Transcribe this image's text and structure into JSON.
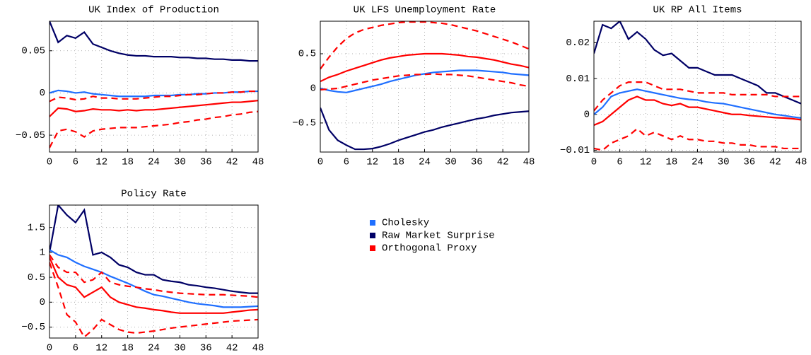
{
  "chart_data": [
    {
      "type": "line",
      "title": "UK Index of Production",
      "x": [
        0,
        2,
        4,
        6,
        8,
        10,
        12,
        14,
        16,
        18,
        20,
        22,
        24,
        26,
        28,
        30,
        32,
        34,
        36,
        38,
        40,
        42,
        44,
        46,
        48
      ],
      "xlim": [
        0,
        48
      ],
      "xticks": [
        0,
        6,
        12,
        18,
        24,
        30,
        36,
        42,
        48
      ],
      "ylim": [
        -0.07,
        0.085
      ],
      "yticks": [
        {
          "value": -0.05,
          "label": "−0.05"
        },
        0,
        0.05
      ],
      "grid": true,
      "series": [
        {
          "color": "#000066",
          "style": "solid",
          "values": [
            0.085,
            0.06,
            0.068,
            0.065,
            0.072,
            0.058,
            0.054,
            0.05,
            0.047,
            0.045,
            0.044,
            0.044,
            0.043,
            0.043,
            0.043,
            0.042,
            0.042,
            0.041,
            0.041,
            0.04,
            0.04,
            0.039,
            0.039,
            0.038,
            0.038
          ]
        },
        {
          "color": "#1f6fff",
          "style": "solid",
          "values": [
            0.0,
            0.003,
            0.002,
            0.0,
            0.001,
            -0.001,
            -0.002,
            -0.003,
            -0.004,
            -0.004,
            -0.004,
            -0.004,
            -0.003,
            -0.003,
            -0.003,
            -0.002,
            -0.002,
            -0.001,
            -0.001,
            0.0,
            0.0,
            0.001,
            0.001,
            0.002,
            0.002
          ]
        },
        {
          "color": "#ff0000",
          "style": "solid",
          "values": [
            -0.028,
            -0.018,
            -0.019,
            -0.022,
            -0.021,
            -0.019,
            -0.02,
            -0.02,
            -0.021,
            -0.02,
            -0.021,
            -0.02,
            -0.02,
            -0.019,
            -0.018,
            -0.017,
            -0.016,
            -0.015,
            -0.014,
            -0.013,
            -0.012,
            -0.011,
            -0.011,
            -0.01,
            -0.009
          ]
        },
        {
          "color": "#ff0000",
          "style": "dashed",
          "values": [
            -0.01,
            -0.005,
            -0.006,
            -0.008,
            -0.007,
            -0.004,
            -0.006,
            -0.006,
            -0.007,
            -0.007,
            -0.007,
            -0.006,
            -0.005,
            -0.004,
            -0.004,
            -0.003,
            -0.002,
            -0.002,
            -0.001,
            0.0,
            0.0,
            0.001,
            0.001,
            0.002,
            0.002
          ]
        },
        {
          "color": "#ff0000",
          "style": "dashed",
          "values": [
            -0.065,
            -0.045,
            -0.043,
            -0.046,
            -0.052,
            -0.045,
            -0.043,
            -0.042,
            -0.041,
            -0.041,
            -0.041,
            -0.04,
            -0.039,
            -0.038,
            -0.037,
            -0.035,
            -0.034,
            -0.032,
            -0.031,
            -0.029,
            -0.028,
            -0.026,
            -0.025,
            -0.023,
            -0.022
          ]
        }
      ]
    },
    {
      "type": "line",
      "title": "UK LFS Unemployment Rate",
      "x": [
        0,
        2,
        4,
        6,
        8,
        10,
        12,
        14,
        16,
        18,
        20,
        22,
        24,
        26,
        28,
        30,
        32,
        34,
        36,
        38,
        40,
        42,
        44,
        46,
        48
      ],
      "xlim": [
        0,
        48
      ],
      "xticks": [
        0,
        6,
        12,
        18,
        24,
        30,
        36,
        42,
        48
      ],
      "ylim": [
        -0.92,
        0.97
      ],
      "yticks": [
        {
          "value": -0.5,
          "label": "−0.5"
        },
        0,
        0.5
      ],
      "grid": true,
      "series": [
        {
          "color": "#1f6fff",
          "style": "solid",
          "values": [
            0.0,
            -0.03,
            -0.05,
            -0.06,
            -0.03,
            0.0,
            0.03,
            0.06,
            0.1,
            0.13,
            0.16,
            0.19,
            0.21,
            0.23,
            0.24,
            0.25,
            0.26,
            0.26,
            0.26,
            0.25,
            0.24,
            0.23,
            0.21,
            0.2,
            0.19
          ]
        },
        {
          "color": "#000066",
          "style": "solid",
          "values": [
            -0.28,
            -0.6,
            -0.75,
            -0.82,
            -0.88,
            -0.88,
            -0.87,
            -0.84,
            -0.8,
            -0.75,
            -0.71,
            -0.67,
            -0.63,
            -0.6,
            -0.56,
            -0.53,
            -0.5,
            -0.47,
            -0.44,
            -0.42,
            -0.39,
            -0.37,
            -0.35,
            -0.34,
            -0.33
          ]
        },
        {
          "color": "#ff0000",
          "style": "solid",
          "values": [
            0.1,
            0.16,
            0.2,
            0.25,
            0.29,
            0.33,
            0.37,
            0.41,
            0.44,
            0.46,
            0.48,
            0.49,
            0.5,
            0.5,
            0.5,
            0.49,
            0.48,
            0.46,
            0.45,
            0.43,
            0.41,
            0.38,
            0.35,
            0.33,
            0.3
          ]
        },
        {
          "color": "#ff0000",
          "style": "dashed",
          "values": [
            0.28,
            0.45,
            0.6,
            0.72,
            0.8,
            0.85,
            0.88,
            0.91,
            0.93,
            0.95,
            0.96,
            0.96,
            0.96,
            0.95,
            0.94,
            0.92,
            0.89,
            0.86,
            0.83,
            0.79,
            0.75,
            0.71,
            0.67,
            0.62,
            0.57
          ]
        },
        {
          "color": "#ff0000",
          "style": "dashed",
          "values": [
            -0.02,
            -0.01,
            0.0,
            0.03,
            0.06,
            0.09,
            0.12,
            0.14,
            0.16,
            0.18,
            0.19,
            0.2,
            0.2,
            0.21,
            0.2,
            0.2,
            0.19,
            0.18,
            0.16,
            0.14,
            0.12,
            0.1,
            0.08,
            0.05,
            0.03
          ]
        }
      ]
    },
    {
      "type": "line",
      "title": "UK RP All Items",
      "x": [
        0,
        2,
        4,
        6,
        8,
        10,
        12,
        14,
        16,
        18,
        20,
        22,
        24,
        26,
        28,
        30,
        32,
        34,
        36,
        38,
        40,
        42,
        44,
        46,
        48
      ],
      "xlim": [
        0,
        48
      ],
      "xticks": [
        0,
        6,
        12,
        18,
        24,
        30,
        36,
        42,
        48
      ],
      "ylim": [
        -0.0105,
        0.026
      ],
      "yticks": [
        {
          "value": -0.01,
          "label": "−0.01"
        },
        0,
        0.01,
        0.02
      ],
      "grid": true,
      "series": [
        {
          "color": "#000066",
          "style": "solid",
          "values": [
            0.017,
            0.025,
            0.024,
            0.026,
            0.021,
            0.023,
            0.021,
            0.018,
            0.0165,
            0.017,
            0.015,
            0.013,
            0.013,
            0.012,
            0.011,
            0.011,
            0.011,
            0.01,
            0.009,
            0.008,
            0.006,
            0.006,
            0.005,
            0.004,
            0.003
          ]
        },
        {
          "color": "#1f6fff",
          "style": "solid",
          "values": [
            0.0,
            0.002,
            0.005,
            0.006,
            0.0065,
            0.007,
            0.0065,
            0.006,
            0.0055,
            0.005,
            0.0045,
            0.0042,
            0.004,
            0.0035,
            0.0032,
            0.003,
            0.0025,
            0.002,
            0.0015,
            0.001,
            0.0005,
            0.0,
            -0.0003,
            -0.0007,
            -0.001
          ]
        },
        {
          "color": "#ff0000",
          "style": "solid",
          "values": [
            -0.003,
            -0.002,
            0.0,
            0.002,
            0.004,
            0.005,
            0.004,
            0.004,
            0.003,
            0.0025,
            0.003,
            0.002,
            0.002,
            0.0015,
            0.001,
            0.0005,
            0.0,
            0.0,
            -0.0003,
            -0.0005,
            -0.0007,
            -0.0009,
            -0.001,
            -0.0012,
            -0.0015
          ]
        },
        {
          "color": "#ff0000",
          "style": "dashed",
          "values": [
            0.001,
            0.004,
            0.006,
            0.008,
            0.009,
            0.009,
            0.009,
            0.008,
            0.007,
            0.007,
            0.007,
            0.0065,
            0.006,
            0.006,
            0.006,
            0.006,
            0.0055,
            0.0055,
            0.0055,
            0.0055,
            0.0055,
            0.005,
            0.005,
            0.005,
            0.005
          ]
        },
        {
          "color": "#ff0000",
          "style": "dashed",
          "values": [
            -0.0095,
            -0.01,
            -0.008,
            -0.007,
            -0.006,
            -0.004,
            -0.006,
            -0.005,
            -0.006,
            -0.007,
            -0.006,
            -0.007,
            -0.007,
            -0.0075,
            -0.0075,
            -0.008,
            -0.008,
            -0.0085,
            -0.0085,
            -0.009,
            -0.009,
            -0.009,
            -0.0095,
            -0.0095,
            -0.0095
          ]
        }
      ]
    },
    {
      "type": "line",
      "title": "Policy Rate",
      "x": [
        0,
        2,
        4,
        6,
        8,
        10,
        12,
        14,
        16,
        18,
        20,
        22,
        24,
        26,
        28,
        30,
        32,
        34,
        36,
        38,
        40,
        42,
        44,
        46,
        48
      ],
      "xlim": [
        0,
        48
      ],
      "xticks": [
        0,
        6,
        12,
        18,
        24,
        30,
        36,
        42,
        48
      ],
      "ylim": [
        -0.72,
        1.95
      ],
      "yticks": [
        {
          "value": -0.5,
          "label": "−0.5"
        },
        0,
        0.5,
        1,
        1.5
      ],
      "grid": true,
      "series": [
        {
          "color": "#000066",
          "style": "solid",
          "values": [
            1.0,
            1.95,
            1.75,
            1.6,
            1.85,
            0.95,
            1.0,
            0.9,
            0.75,
            0.7,
            0.6,
            0.55,
            0.55,
            0.45,
            0.42,
            0.4,
            0.35,
            0.33,
            0.3,
            0.28,
            0.25,
            0.22,
            0.2,
            0.18,
            0.18
          ]
        },
        {
          "color": "#1f6fff",
          "style": "solid",
          "values": [
            1.05,
            0.95,
            0.9,
            0.8,
            0.72,
            0.66,
            0.6,
            0.52,
            0.45,
            0.38,
            0.3,
            0.22,
            0.15,
            0.12,
            0.08,
            0.04,
            0.0,
            -0.03,
            -0.05,
            -0.07,
            -0.1,
            -0.1,
            -0.1,
            -0.09,
            -0.08
          ]
        },
        {
          "color": "#ff0000",
          "style": "solid",
          "values": [
            0.9,
            0.5,
            0.35,
            0.3,
            0.1,
            0.2,
            0.3,
            0.1,
            0.0,
            -0.05,
            -0.1,
            -0.12,
            -0.15,
            -0.17,
            -0.2,
            -0.22,
            -0.22,
            -0.22,
            -0.22,
            -0.22,
            -0.22,
            -0.2,
            -0.18,
            -0.16,
            -0.15
          ]
        },
        {
          "color": "#ff0000",
          "style": "dashed",
          "values": [
            0.95,
            0.7,
            0.6,
            0.6,
            0.4,
            0.45,
            0.6,
            0.4,
            0.35,
            0.32,
            0.3,
            0.27,
            0.25,
            0.22,
            0.2,
            0.18,
            0.17,
            0.16,
            0.15,
            0.15,
            0.15,
            0.14,
            0.13,
            0.12,
            0.1
          ]
        },
        {
          "color": "#ff0000",
          "style": "dashed",
          "values": [
            0.8,
            0.3,
            -0.25,
            -0.4,
            -0.7,
            -0.55,
            -0.35,
            -0.45,
            -0.55,
            -0.6,
            -0.62,
            -0.6,
            -0.58,
            -0.55,
            -0.52,
            -0.5,
            -0.48,
            -0.46,
            -0.44,
            -0.42,
            -0.4,
            -0.38,
            -0.37,
            -0.36,
            -0.35
          ]
        }
      ]
    }
  ],
  "legend": [
    {
      "name": "Cholesky",
      "color": "#1f6fff"
    },
    {
      "name": "Raw Market Surprise",
      "color": "#000066"
    },
    {
      "name": "Orthogonal Proxy",
      "color": "#ff0000"
    }
  ]
}
